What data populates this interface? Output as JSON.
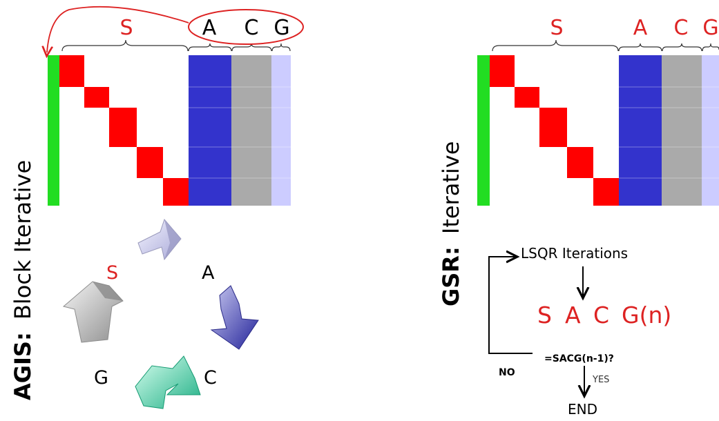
{
  "left_panel": {
    "title_bold": "AGIS:",
    "title_rest": "Block Iterative",
    "top_labels": {
      "s": "S",
      "a": "A",
      "c": "C",
      "g": "G"
    },
    "cycle": {
      "s": "S",
      "a": "A",
      "c": "C",
      "g": "G"
    }
  },
  "right_panel": {
    "title_bold": "GSR:",
    "title_rest": "Iterative",
    "top_labels": {
      "s": "S",
      "a": "A",
      "c": "C",
      "g": "G"
    },
    "flow": {
      "lsqr": "LSQR Iterations",
      "sacg_s": "S",
      "sacg_a": "A",
      "sacg_c": "C",
      "sacg_g": "G(n)",
      "condition": "=SACG(n-1)?",
      "no": "NO",
      "yes": "YES",
      "end": "END"
    }
  },
  "colors": {
    "green": "#22dd22",
    "red": "#ff0000",
    "blue": "#3333cc",
    "gray": "#aaaaaa",
    "lavender": "#ccccff",
    "label_red": "#dd2222"
  }
}
